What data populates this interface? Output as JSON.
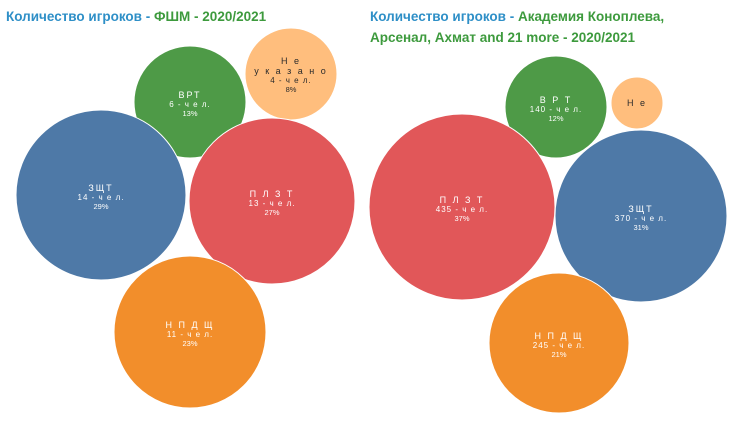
{
  "chart_data": [
    {
      "type": "bubble",
      "title_part1": "Количество игроков - ",
      "title_part2": "ФШМ - 2020/2021",
      "bubbles": [
        {
          "name": "ВРТ",
          "count": "6 - ч е л.",
          "percent": "13%",
          "value": 6,
          "color": "#4e9a47"
        },
        {
          "name": "Н е",
          "name2": "у к а з а н о",
          "count": "4 - ч е л.",
          "percent": "8%",
          "value": 4,
          "color": "#ffbe7d"
        },
        {
          "name": "ЗЩТ",
          "count": "14 - ч е л.",
          "percent": "29%",
          "value": 14,
          "color": "#4e79a7"
        },
        {
          "name": "П Л З Т",
          "count": "13 - ч е л.",
          "percent": "27%",
          "value": 13,
          "color": "#e15759"
        },
        {
          "name": "Н П Д Щ",
          "count": "11 - ч е л.",
          "percent": "23%",
          "value": 11,
          "color": "#f28e2b"
        }
      ]
    },
    {
      "type": "bubble",
      "title_part1": "Количество игроков - ",
      "title_part2": "Академия Коноплева, Арсенал, Ахмат and 21 more - 2020/2021",
      "bubbles": [
        {
          "name": "В Р Т",
          "count": "140 - ч е л.",
          "percent": "12%",
          "value": 140,
          "color": "#4e9a47"
        },
        {
          "name": "Н е",
          "count": "",
          "percent": "",
          "value": 10,
          "color": "#ffbe7d"
        },
        {
          "name": "П Л З Т",
          "count": "435 - ч е л.",
          "percent": "37%",
          "value": 435,
          "color": "#e15759"
        },
        {
          "name": "ЗЩТ",
          "count": "370 - ч е л.",
          "percent": "31%",
          "value": 370,
          "color": "#4e79a7"
        },
        {
          "name": "Н П Д Щ",
          "count": "245 - ч е л.",
          "percent": "21%",
          "value": 245,
          "color": "#f28e2b"
        }
      ]
    }
  ]
}
